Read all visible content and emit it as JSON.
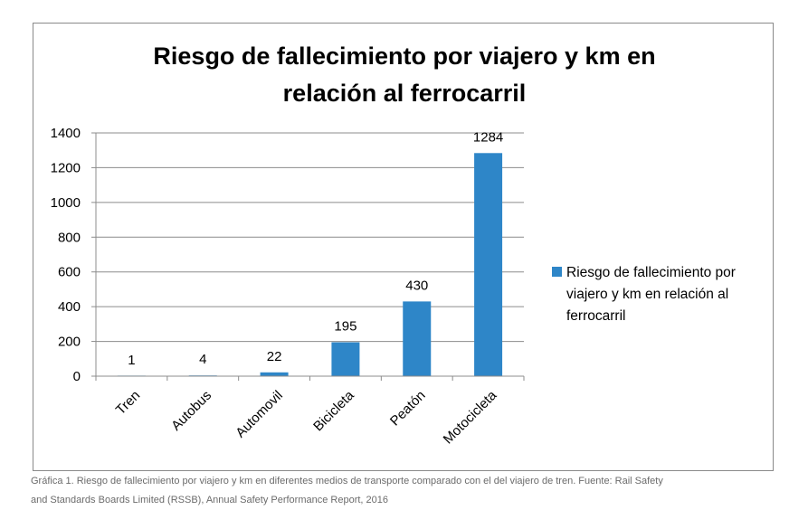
{
  "chart_data": {
    "type": "bar",
    "title_lines": [
      "Riesgo de fallecimiento por viajero y km en",
      "relación al ferrocarril"
    ],
    "categories": [
      "Tren",
      "Autobus",
      "Automovil",
      "Bicicleta",
      "Peatón",
      "Motocicleta"
    ],
    "series": [
      {
        "name": "Riesgo de fallecimiento por viajero y km en relación al ferrocarril",
        "values": [
          1,
          4,
          22,
          195,
          430,
          1284
        ]
      }
    ],
    "data_labels": [
      "1",
      "4",
      "22",
      "195",
      "430",
      "1284"
    ],
    "xlabel": "",
    "ylabel": "",
    "ylim": [
      0,
      1400
    ],
    "yticks": [
      0,
      200,
      400,
      600,
      800,
      1000,
      1200,
      1400
    ],
    "ytick_labels": [
      "0",
      "200",
      "400",
      "600",
      "800",
      "1000",
      "1200",
      "1400"
    ],
    "grid": true,
    "legend_position": "right",
    "legend_lines": [
      "Riesgo de fallecimiento por",
      "viajero y km en relación al",
      "ferrocarril"
    ],
    "bar_color": "#2E86C8",
    "grid_color": "#8c8c8c"
  },
  "caption": {
    "line1": "Gráfica 1. Riesgo de fallecimiento por viajero y km en diferentes medios de transporte comparado con el del viajero de tren. Fuente: Rail Safety",
    "line2": "and Standards Boards Limited (RSSB), Annual Safety Performance Report, 2016"
  }
}
